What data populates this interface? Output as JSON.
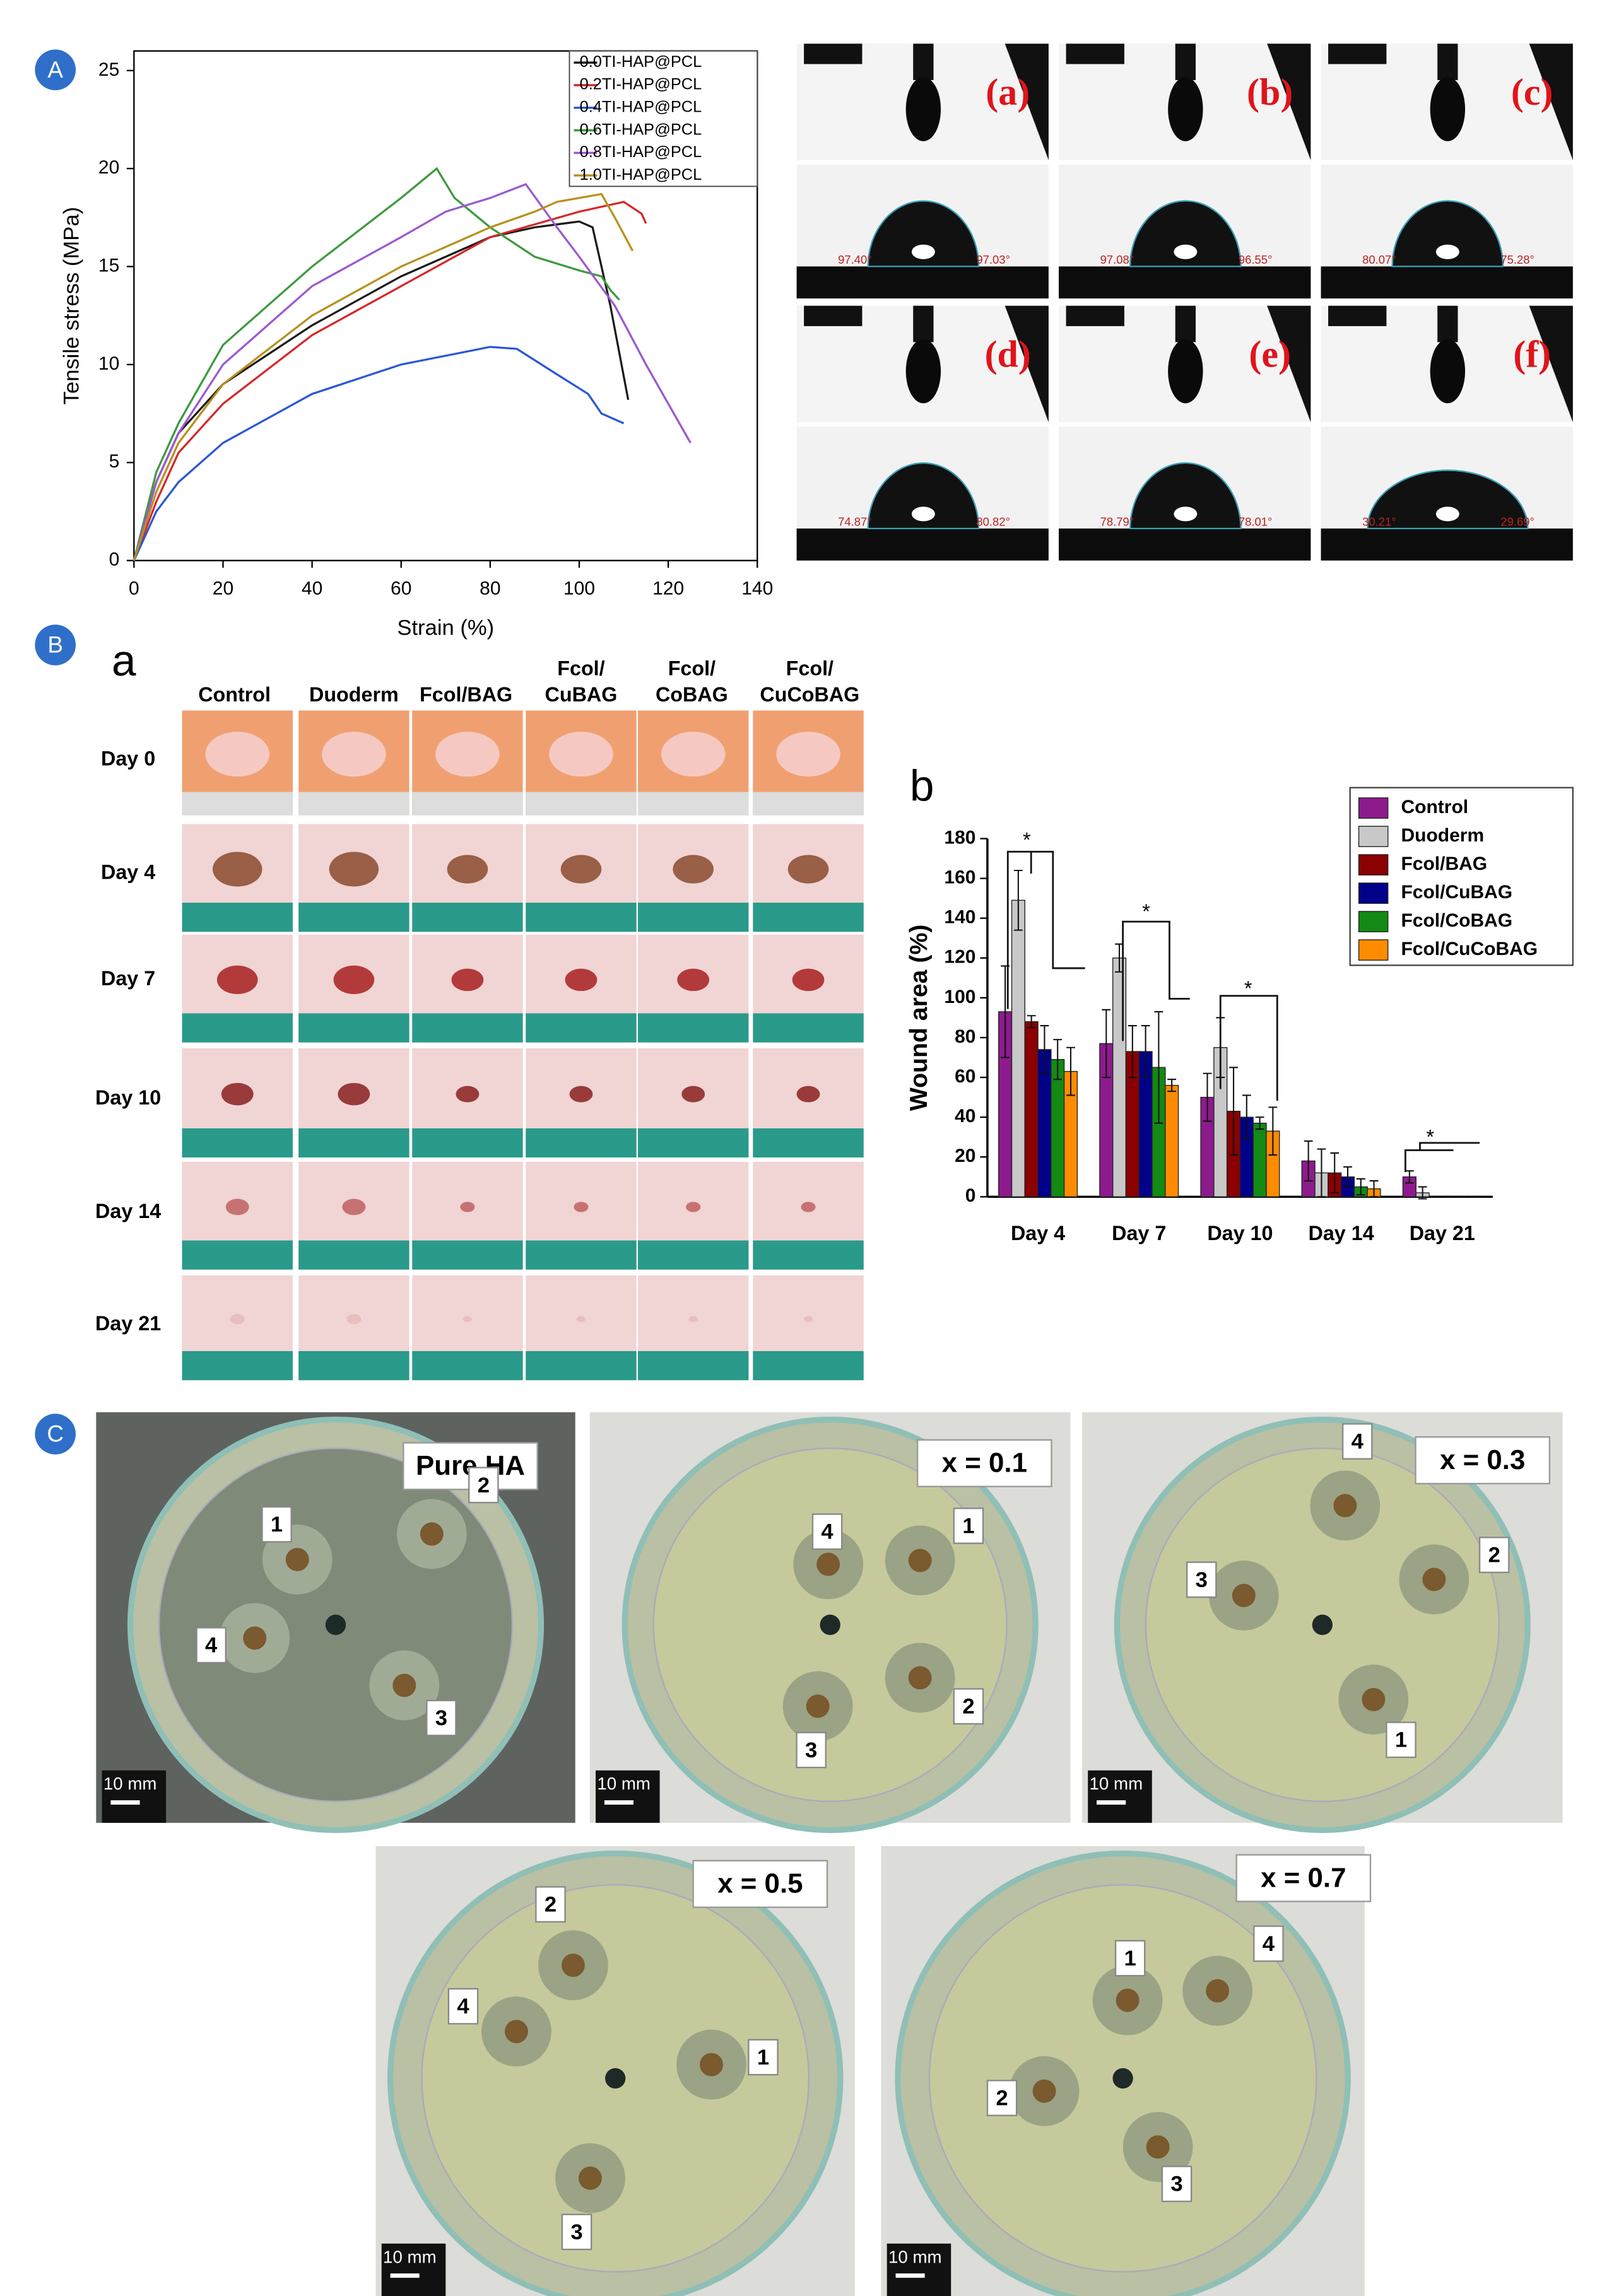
{
  "chart_data": [
    {
      "type": "line",
      "xlabel": "Strain (%)",
      "ylabel": "Tensile stress (MPa)",
      "xlim": [
        0,
        140
      ],
      "xticks": [
        0,
        20,
        40,
        60,
        80,
        100,
        120,
        140
      ],
      "ylim": [
        0,
        26
      ],
      "yticks": [
        0,
        5,
        10,
        15,
        20,
        25
      ],
      "legend": "upper right",
      "series": [
        {
          "name": "0.0TI-HAP@PCL",
          "color": "#1a1a1a",
          "x": [
            0,
            5,
            10,
            20,
            40,
            60,
            80,
            90,
            100,
            103,
            107,
            111
          ],
          "values": [
            0,
            4,
            6.5,
            9,
            12,
            14.5,
            16.5,
            17,
            17.3,
            17,
            13,
            8.2
          ]
        },
        {
          "name": "0.2TI-HAP@PCL",
          "color": "#d62728",
          "x": [
            0,
            5,
            10,
            20,
            40,
            60,
            80,
            100,
            110,
            114,
            115
          ],
          "values": [
            0,
            3,
            5.5,
            8,
            11.5,
            14,
            16.5,
            17.8,
            18.3,
            17.7,
            17.2
          ]
        },
        {
          "name": "0.4TI-HAP@PCL",
          "color": "#2a57d6",
          "x": [
            0,
            5,
            10,
            20,
            40,
            60,
            80,
            86,
            95,
            102,
            105,
            110
          ],
          "values": [
            0,
            2.5,
            4,
            6,
            8.5,
            10,
            10.9,
            10.8,
            9.5,
            8.5,
            7.5,
            7
          ]
        },
        {
          "name": "0.6TI-HAP@PCL",
          "color": "#3c9a3c",
          "x": [
            0,
            5,
            10,
            20,
            40,
            60,
            68,
            72,
            80,
            90,
            100,
            105,
            107,
            109
          ],
          "values": [
            0,
            4.5,
            7,
            11,
            15,
            18.5,
            20,
            18.5,
            17,
            15.5,
            14.8,
            14.5,
            13.8,
            13.3
          ]
        },
        {
          "name": "0.8TI-HAP@PCL",
          "color": "#9b59d0",
          "x": [
            0,
            5,
            10,
            20,
            40,
            60,
            70,
            80,
            88,
            95,
            100,
            108,
            115,
            120,
            125
          ],
          "values": [
            0,
            4,
            6.5,
            10,
            14,
            16.5,
            17.8,
            18.5,
            19.2,
            17,
            15.5,
            13,
            10,
            8,
            6
          ]
        },
        {
          "name": "1.0TI-HAP@PCL",
          "color": "#b8901e",
          "x": [
            0,
            5,
            10,
            20,
            40,
            60,
            80,
            90,
            95,
            100,
            105,
            108,
            112
          ],
          "values": [
            0,
            3.5,
            6,
            9,
            12.5,
            15,
            17,
            17.8,
            18.3,
            18.5,
            18.7,
            17.5,
            15.8
          ]
        }
      ]
    },
    {
      "type": "bar",
      "ylabel": "Wound area (%)",
      "categories": [
        "Day 4",
        "Day 7",
        "Day 10",
        "Day 14",
        "Day 21"
      ],
      "ylim": [
        0,
        180
      ],
      "yticks": [
        0,
        20,
        40,
        60,
        80,
        100,
        120,
        140,
        160,
        180
      ],
      "legend": "upper right",
      "annotations": [
        "*",
        "*",
        "*",
        "*"
      ],
      "series": [
        {
          "name": "Control",
          "color": "#8e1b8e",
          "values": [
            93,
            77,
            50,
            18,
            10
          ],
          "errors": [
            23,
            17,
            12,
            10,
            3
          ]
        },
        {
          "name": "Duoderm",
          "color": "#c8c8c8",
          "values": [
            149,
            120,
            75,
            12,
            2
          ],
          "errors": [
            15,
            7,
            15,
            12,
            3
          ]
        },
        {
          "name": "Fcol/BAG",
          "color": "#8b0000",
          "values": [
            88,
            73,
            43,
            12,
            0
          ],
          "errors": [
            3,
            13,
            22,
            10,
            0
          ]
        },
        {
          "name": "Fcol/CuBAG",
          "color": "#00008b",
          "values": [
            74,
            73,
            40,
            10,
            0
          ],
          "errors": [
            12,
            13,
            11,
            5,
            0
          ]
        },
        {
          "name": "Fcol/CoBAG",
          "color": "#138a13",
          "values": [
            69,
            65,
            37,
            5,
            0
          ],
          "errors": [
            10,
            28,
            3,
            4,
            0
          ]
        },
        {
          "name": "Fcol/CuCoBAG",
          "color": "#ff8c00",
          "values": [
            63,
            56,
            33,
            4,
            0
          ],
          "errors": [
            12,
            3,
            12,
            4,
            0
          ]
        }
      ]
    }
  ],
  "figure": {
    "panel_labels": [
      "A",
      "B",
      "C"
    ],
    "contact_angle": {
      "labels": [
        "(a)",
        "(b)",
        "(c)",
        "(d)",
        "(e)",
        "(f)"
      ],
      "angles": [
        [
          "97.40°",
          "97.03°"
        ],
        [
          "97.08°",
          "96.55°"
        ],
        [
          "80.07°",
          "75.28°"
        ],
        [
          "74.87°",
          "80.82°"
        ],
        [
          "78.79°",
          "78.01°"
        ],
        [
          "30.21°",
          "29.69°"
        ]
      ]
    },
    "wound": {
      "label": "a",
      "chart_label": "b",
      "columns": [
        [
          "Control"
        ],
        [
          "Duoderm"
        ],
        [
          "Fcol/BAG"
        ],
        [
          "Fcol/",
          "CuBAG"
        ],
        [
          "Fcol/",
          "CoBAG"
        ],
        [
          "Fcol/",
          "CuCoBAG"
        ]
      ],
      "rows": [
        "Day 0",
        "Day 4",
        "Day 7",
        "Day 10",
        "Day 14",
        "Day 21"
      ]
    },
    "plates": {
      "scale": "10 mm",
      "items": [
        {
          "label": "Pure HA",
          "numbers": [
            "1",
            "2",
            "3",
            "4"
          ]
        },
        {
          "label": "x = 0.1",
          "numbers": [
            "1",
            "2",
            "3",
            "4"
          ]
        },
        {
          "label": "x = 0.3",
          "numbers": [
            "1",
            "2",
            "3",
            "4"
          ]
        },
        {
          "label": "x = 0.5",
          "numbers": [
            "1",
            "2",
            "3",
            "4"
          ]
        },
        {
          "label": "x = 0.7",
          "numbers": [
            "1",
            "2",
            "3",
            "4"
          ]
        }
      ]
    }
  }
}
